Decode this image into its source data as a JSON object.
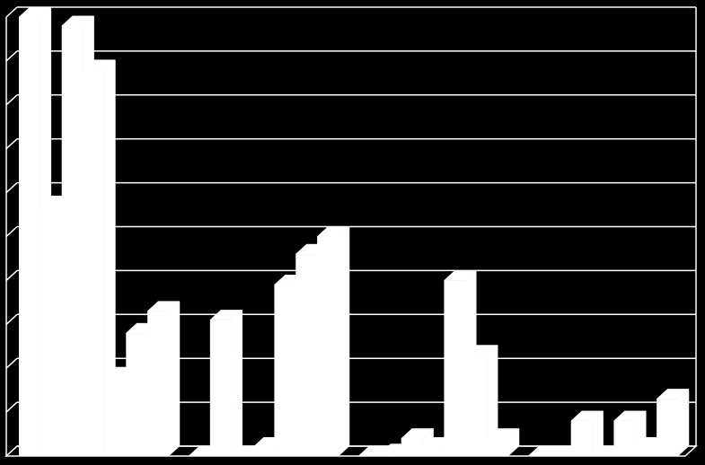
{
  "chart_data": {
    "type": "bar",
    "title": "",
    "xlabel": "",
    "ylabel": "",
    "categories": [
      "",
      "",
      "",
      ""
    ],
    "series": [
      {
        "values": [
          100,
          0,
          0,
          0
        ]
      },
      {
        "values": [
          57,
          31,
          0.5,
          0
        ]
      },
      {
        "values": [
          98,
          0,
          4,
          8
        ]
      },
      {
        "values": [
          88,
          2,
          2,
          0
        ]
      },
      {
        "values": [
          18,
          39,
          40,
          8
        ]
      },
      {
        "values": [
          28,
          46,
          23,
          2
        ]
      },
      {
        "values": [
          33,
          50,
          4,
          13
        ]
      }
    ],
    "ylim": [
      0,
      100
    ],
    "yticks": 10,
    "grid": true,
    "legend": "none",
    "colors": {
      "background": "#000000",
      "bar": "#ffffff",
      "grid": "#ffffff"
    }
  }
}
